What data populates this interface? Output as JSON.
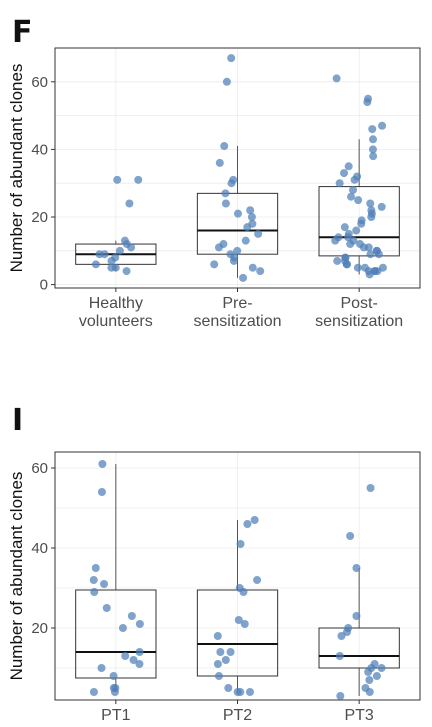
{
  "chart_data": [
    {
      "type": "box",
      "panel_label": "F",
      "title": "",
      "xlabel": "",
      "ylabel": "Number of abundant clones",
      "ylim": [
        -1,
        70
      ],
      "yticks": [
        0,
        20,
        40,
        60
      ],
      "grid": true,
      "categories": [
        "Healthy\nvolunteers",
        "Pre-\nsensitization",
        "Post-\nsensitization"
      ],
      "boxes": [
        {
          "q1": 6,
          "median": 9,
          "q3": 12,
          "lower_whisker": 4,
          "upper_whisker": 13
        },
        {
          "q1": 9,
          "median": 16,
          "q3": 27,
          "lower_whisker": 2,
          "upper_whisker": 41
        },
        {
          "q1": 8.5,
          "median": 14,
          "q3": 29,
          "lower_whisker": 3,
          "upper_whisker": 43
        }
      ],
      "points": [
        [
          31,
          31,
          24,
          13,
          12,
          11,
          10,
          9,
          9,
          8,
          7,
          6,
          5,
          5,
          4
        ],
        [
          67,
          60,
          41,
          36,
          31,
          30,
          27,
          24,
          22,
          21,
          20,
          18,
          17,
          15,
          13,
          12,
          11,
          10,
          9,
          8,
          7,
          6,
          5,
          4,
          2
        ],
        [
          61,
          55,
          54,
          47,
          46,
          43,
          40,
          38,
          35,
          33,
          32,
          31,
          30,
          28,
          26,
          25,
          24,
          23,
          22,
          21,
          20,
          19,
          18,
          17,
          16,
          15,
          14,
          14,
          13,
          13,
          12,
          12,
          11,
          11,
          10,
          10,
          9,
          9,
          8,
          8,
          7,
          7,
          6,
          6,
          5,
          5,
          5,
          4,
          4,
          4,
          4,
          3
        ]
      ]
    },
    {
      "type": "box",
      "panel_label": "I",
      "title": "",
      "xlabel": "",
      "ylabel": "Number of abundant clones",
      "ylim": [
        2,
        64
      ],
      "yticks": [
        20,
        40,
        60
      ],
      "grid": true,
      "categories": [
        "PT1",
        "PT2",
        "PT3"
      ],
      "boxes": [
        {
          "q1": 7.5,
          "median": 14,
          "q3": 29.5,
          "lower_whisker": 4,
          "upper_whisker": 61
        },
        {
          "q1": 8,
          "median": 16,
          "q3": 29.5,
          "lower_whisker": 4,
          "upper_whisker": 47
        },
        {
          "q1": 10,
          "median": 13,
          "q3": 20,
          "lower_whisker": 3,
          "upper_whisker": 35
        }
      ],
      "points": [
        [
          61,
          54,
          35,
          32,
          31,
          29,
          25,
          23,
          21,
          20,
          14,
          13,
          12,
          11,
          10,
          8,
          5,
          5,
          4,
          4
        ],
        [
          47,
          46,
          41,
          32,
          30,
          29,
          22,
          21,
          18,
          14,
          14,
          12,
          11,
          8,
          5,
          4,
          4,
          4
        ],
        [
          55,
          43,
          35,
          23,
          20,
          19,
          18,
          13,
          11,
          10,
          10,
          9,
          8,
          7,
          5,
          4,
          3
        ]
      ]
    }
  ],
  "colors": {
    "point": "#4f7fb8",
    "box_line": "#333333",
    "median": "#111111",
    "whisker": "#555555",
    "grid": "#ebebeb",
    "frame": "#333333",
    "tick_text": "#4d4d4d"
  }
}
